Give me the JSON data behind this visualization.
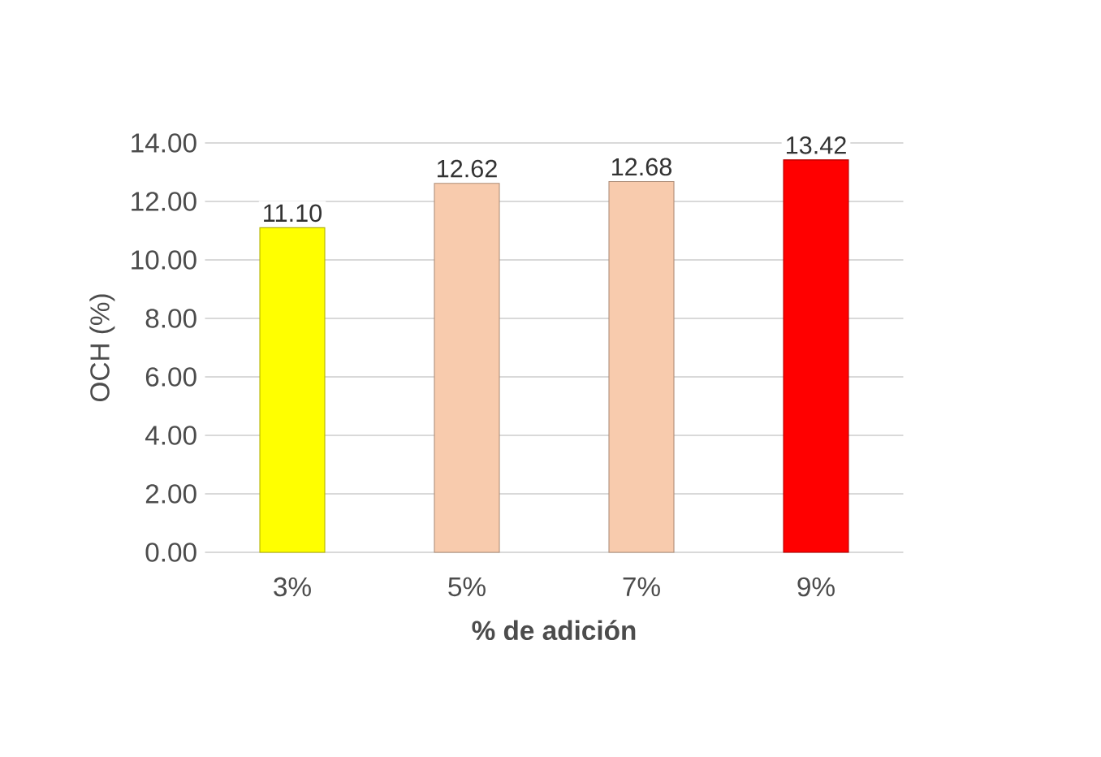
{
  "chart_data": {
    "type": "bar",
    "xlabel": "% de adición",
    "ylabel": "OCH (%)",
    "categories": [
      "3%",
      "5%",
      "7%",
      "9%"
    ],
    "values": [
      11.1,
      12.62,
      12.68,
      13.42
    ],
    "colors": [
      "#ffff00",
      "#f8cbad",
      "#f8cbad",
      "#ff0000"
    ],
    "value_labels": [
      "11.10",
      "12.62",
      "12.68",
      "13.42"
    ],
    "ylim": [
      0,
      14
    ],
    "yticks": [
      {
        "value": 0,
        "label": "0.00"
      },
      {
        "value": 2,
        "label": "2.00"
      },
      {
        "value": 4,
        "label": "4.00"
      },
      {
        "value": 6,
        "label": "6.00"
      },
      {
        "value": 8,
        "label": "8.00"
      },
      {
        "value": 10,
        "label": "10.00"
      },
      {
        "value": 12,
        "label": "12.00"
      },
      {
        "value": 14,
        "label": "14.00"
      }
    ],
    "grid": "y"
  }
}
